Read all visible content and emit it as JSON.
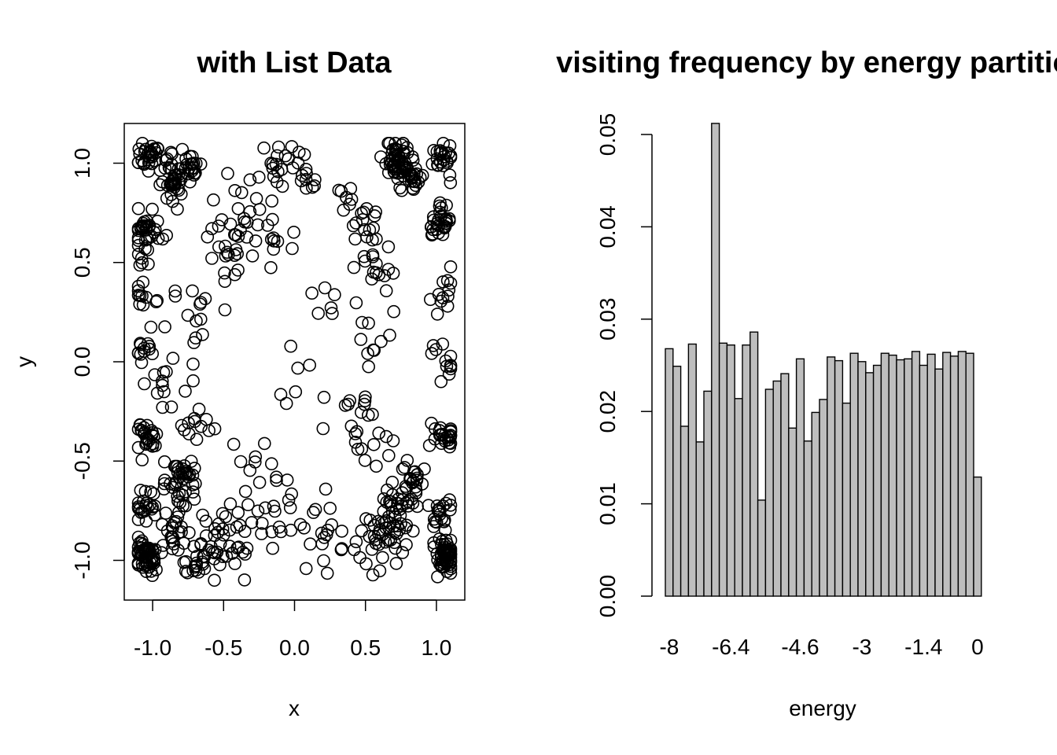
{
  "chart_data": [
    {
      "type": "scatter",
      "title": "with List Data",
      "xlabel": "x",
      "ylabel": "y",
      "xlim": [
        -1.2,
        1.2
      ],
      "ylim": [
        -1.2,
        1.2
      ],
      "xticks": [
        "-1.0",
        "-0.5",
        "0.0",
        "0.5",
        "1.0"
      ],
      "xtick_values": [
        -1.0,
        -0.5,
        0.0,
        0.5,
        1.0
      ],
      "yticks": [
        "-1.0",
        "-0.5",
        "0.0",
        "0.5",
        "1.0"
      ],
      "ytick_values": [
        -1.0,
        -0.5,
        0.0,
        0.5,
        1.0
      ],
      "marker": "open-circle",
      "clusters": [
        {
          "x": -1.02,
          "y": 1.04,
          "n": 30,
          "sd": 0.04
        },
        {
          "x": -0.85,
          "y": 0.92,
          "n": 45,
          "sd": 0.06
        },
        {
          "x": -0.74,
          "y": 1.02,
          "n": 16,
          "sd": 0.04
        },
        {
          "x": -1.04,
          "y": 0.68,
          "n": 32,
          "sd": 0.05
        },
        {
          "x": -1.05,
          "y": 0.52,
          "n": 6,
          "sd": 0.03
        },
        {
          "x": -1.05,
          "y": 0.3,
          "n": 12,
          "sd": 0.06
        },
        {
          "x": -1.05,
          "y": 0.05,
          "n": 12,
          "sd": 0.07
        },
        {
          "x": -1.05,
          "y": -0.37,
          "n": 25,
          "sd": 0.04
        },
        {
          "x": -0.8,
          "y": -0.62,
          "n": 45,
          "sd": 0.07
        },
        {
          "x": -1.04,
          "y": -0.73,
          "n": 22,
          "sd": 0.04
        },
        {
          "x": -1.06,
          "y": -0.98,
          "n": 60,
          "sd": 0.045
        },
        {
          "x": -0.85,
          "y": -0.88,
          "n": 18,
          "sd": 0.05
        },
        {
          "x": -0.5,
          "y": -0.93,
          "n": 42,
          "sd": 0.09
        },
        {
          "x": -0.73,
          "y": -1.03,
          "n": 14,
          "sd": 0.04
        },
        {
          "x": 0.72,
          "y": 1.03,
          "n": 55,
          "sd": 0.05
        },
        {
          "x": 0.84,
          "y": 0.93,
          "n": 22,
          "sd": 0.04
        },
        {
          "x": 1.04,
          "y": 1.03,
          "n": 25,
          "sd": 0.04
        },
        {
          "x": 1.03,
          "y": 0.7,
          "n": 32,
          "sd": 0.04
        },
        {
          "x": 1.05,
          "y": 0.35,
          "n": 12,
          "sd": 0.05
        },
        {
          "x": 1.05,
          "y": 0.0,
          "n": 12,
          "sd": 0.06
        },
        {
          "x": 1.05,
          "y": -0.36,
          "n": 25,
          "sd": 0.04
        },
        {
          "x": 0.84,
          "y": -0.58,
          "n": 20,
          "sd": 0.04
        },
        {
          "x": 0.72,
          "y": -0.72,
          "n": 38,
          "sd": 0.07
        },
        {
          "x": 1.04,
          "y": -0.75,
          "n": 18,
          "sd": 0.04
        },
        {
          "x": 1.06,
          "y": -0.98,
          "n": 60,
          "sd": 0.045
        },
        {
          "x": 0.6,
          "y": -0.92,
          "n": 34,
          "sd": 0.08
        },
        {
          "x": -0.4,
          "y": 0.75,
          "n": 22,
          "sd": 0.1
        },
        {
          "x": -0.1,
          "y": 0.98,
          "n": 20,
          "sd": 0.08
        },
        {
          "x": 0.1,
          "y": 0.93,
          "n": 10,
          "sd": 0.05
        },
        {
          "x": 0.45,
          "y": 0.7,
          "n": 22,
          "sd": 0.1
        },
        {
          "x": 0.55,
          "y": 0.45,
          "n": 18,
          "sd": 0.1
        },
        {
          "x": -0.45,
          "y": 0.55,
          "n": 16,
          "sd": 0.08
        },
        {
          "x": -0.12,
          "y": 0.6,
          "n": 10,
          "sd": 0.07
        },
        {
          "x": -0.75,
          "y": 0.25,
          "n": 14,
          "sd": 0.09
        },
        {
          "x": -0.85,
          "y": -0.1,
          "n": 14,
          "sd": 0.09
        },
        {
          "x": -0.7,
          "y": -0.35,
          "n": 12,
          "sd": 0.07
        },
        {
          "x": 0.55,
          "y": 0.1,
          "n": 10,
          "sd": 0.1
        },
        {
          "x": 0.55,
          "y": -0.4,
          "n": 14,
          "sd": 0.1
        },
        {
          "x": 0.45,
          "y": -0.25,
          "n": 8,
          "sd": 0.08
        },
        {
          "x": -0.2,
          "y": -0.75,
          "n": 20,
          "sd": 0.1
        },
        {
          "x": 0.18,
          "y": -0.85,
          "n": 20,
          "sd": 0.11
        },
        {
          "x": -0.3,
          "y": -0.45,
          "n": 8,
          "sd": 0.07
        },
        {
          "x": 0.0,
          "y": -0.05,
          "n": 8,
          "sd": 0.12
        },
        {
          "x": 0.25,
          "y": 0.3,
          "n": 4,
          "sd": 0.1
        }
      ]
    },
    {
      "type": "bar",
      "title": "visiting frequency by energy partition",
      "xlabel": "energy",
      "ylabel": "",
      "ylim": [
        0,
        0.05
      ],
      "yticks": [
        "0.00",
        "0.01",
        "0.02",
        "0.03",
        "0.04",
        "0.05"
      ],
      "ytick_values": [
        0,
        0.01,
        0.02,
        0.03,
        0.04,
        0.05
      ],
      "categories": [
        "-8",
        "-7.8",
        "-7.6",
        "-7.4",
        "-7.2",
        "-7",
        "-6.8",
        "-6.6",
        "-6.4",
        "-6.2",
        "-6",
        "-5.8",
        "-5.6",
        "-5.4",
        "-5.2",
        "-5",
        "-4.8",
        "-4.6",
        "-4.4",
        "-4.2",
        "-4",
        "-3.8",
        "-3.6",
        "-3.4",
        "-3.2",
        "-3",
        "-2.8",
        "-2.6",
        "-2.4",
        "-2.2",
        "-2",
        "-1.8",
        "-1.6",
        "-1.4",
        "-1.2",
        "-1",
        "-0.8",
        "-0.6",
        "-0.4",
        "-0.2",
        "0"
      ],
      "xtick_labels": [
        "-8",
        "-6.4",
        "-4.6",
        "-3",
        "-1.4",
        "0"
      ],
      "xtick_category_index": [
        0,
        8,
        17,
        25,
        33,
        40
      ],
      "values": [
        0.0268,
        0.0249,
        0.0184,
        0.0273,
        0.0167,
        0.0222,
        0.0512,
        0.0274,
        0.0272,
        0.0214,
        0.0272,
        0.0286,
        0.0104,
        0.0224,
        0.0233,
        0.0241,
        0.0182,
        0.0257,
        0.0168,
        0.0199,
        0.0213,
        0.0259,
        0.0255,
        0.0209,
        0.0263,
        0.0254,
        0.0242,
        0.025,
        0.0263,
        0.0261,
        0.0256,
        0.0257,
        0.0265,
        0.025,
        0.0262,
        0.0246,
        0.0264,
        0.026,
        0.0265,
        0.0263,
        0.0129
      ]
    }
  ]
}
